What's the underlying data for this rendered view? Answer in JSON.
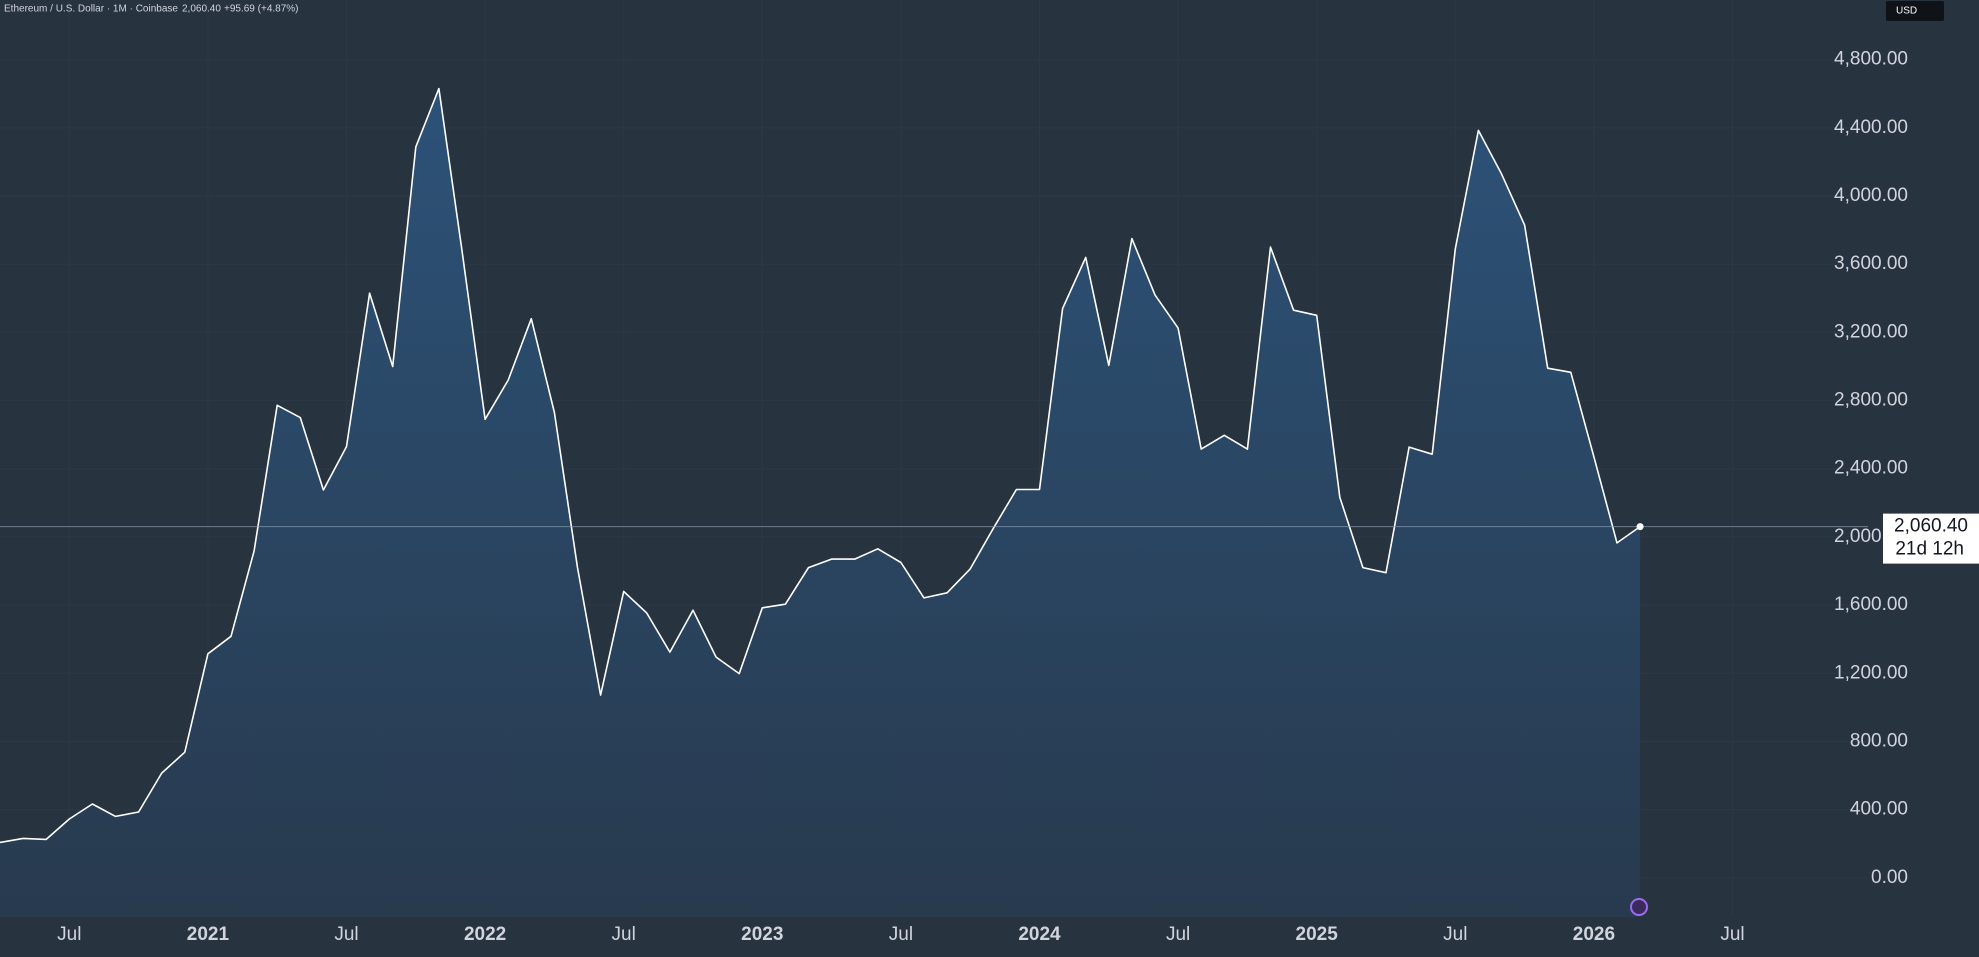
{
  "header": {
    "title": "Ethereum / U.S. Dollar · 1M · Coinbase",
    "price": "2,060.40",
    "change": "+95.69 (+4.87%)",
    "currency": "USD",
    "countdown": "21d 12h"
  },
  "chart_data": {
    "type": "area",
    "x": [
      "2020-04",
      "2020-05",
      "2020-06",
      "2020-07",
      "2020-08",
      "2020-09",
      "2020-10",
      "2020-11",
      "2020-12",
      "2021-01",
      "2021-02",
      "2021-03",
      "2021-04",
      "2021-05",
      "2021-06",
      "2021-07",
      "2021-08",
      "2021-09",
      "2021-10",
      "2021-11",
      "2021-12",
      "2022-01",
      "2022-02",
      "2022-03",
      "2022-04",
      "2022-05",
      "2022-06",
      "2022-07",
      "2022-08",
      "2022-09",
      "2022-10",
      "2022-11",
      "2022-12",
      "2023-01",
      "2023-02",
      "2023-03",
      "2023-04",
      "2023-05",
      "2023-06",
      "2023-07",
      "2023-08",
      "2023-09",
      "2023-10",
      "2023-11",
      "2023-12",
      "2024-01",
      "2024-02",
      "2024-03",
      "2024-04",
      "2024-05",
      "2024-06",
      "2024-07",
      "2024-08",
      "2024-09",
      "2024-10",
      "2024-11",
      "2024-12",
      "2025-01",
      "2025-02",
      "2025-03",
      "2025-04",
      "2025-05",
      "2025-06",
      "2025-07",
      "2025-08",
      "2025-09",
      "2025-10",
      "2025-11",
      "2025-12",
      "2026-01",
      "2026-02",
      "2026-03"
    ],
    "series": [
      {
        "color": "#ffffff",
        "values": [
          207,
          231,
          225,
          345,
          433,
          360,
          386,
          614,
          737,
          1314,
          1417,
          1918,
          2772,
          2700,
          2275,
          2530,
          3430,
          3000,
          4288,
          4630,
          3680,
          2690,
          2920,
          3280,
          2730,
          1820,
          1072,
          1680,
          1553,
          1324,
          1570,
          1295,
          1198,
          1584,
          1605,
          1820,
          1870,
          1870,
          1930,
          1850,
          1642,
          1672,
          1812,
          2050,
          2278,
          2278,
          3340,
          3640,
          3006,
          3750,
          3420,
          3225,
          2515,
          2596,
          2515,
          3700,
          3330,
          3300,
          2233,
          1820,
          1790,
          2527,
          2485,
          3690,
          4385,
          4130,
          3830,
          2990,
          2966,
          2470,
          1964.71,
          2060.4
        ]
      }
    ],
    "ylim": [
      -230,
      5150
    ],
    "yticks": [
      {
        "value": 0,
        "label": "0.00"
      },
      {
        "value": 400,
        "label": "400.00"
      },
      {
        "value": 800,
        "label": "800.00"
      },
      {
        "value": 1200,
        "label": "1,200.00"
      },
      {
        "value": 1600,
        "label": "1,600.00"
      },
      {
        "value": 2000,
        "label": "2,000.00"
      },
      {
        "value": 2400,
        "label": "2,400.00"
      },
      {
        "value": 2800,
        "label": "2,800.00"
      },
      {
        "value": 3200,
        "label": "3,200.00"
      },
      {
        "value": 3600,
        "label": "3,600.00"
      },
      {
        "value": 4000,
        "label": "4,000.00"
      },
      {
        "value": 4400,
        "label": "4,400.00"
      },
      {
        "value": 4800,
        "label": "4,800.00"
      }
    ],
    "xticks": [
      {
        "value": "2020-07",
        "label": "Jul"
      },
      {
        "value": "2021-01",
        "label": "2021"
      },
      {
        "value": "2021-07",
        "label": "Jul"
      },
      {
        "value": "2022-01",
        "label": "2022"
      },
      {
        "value": "2022-07",
        "label": "Jul"
      },
      {
        "value": "2023-01",
        "label": "2023"
      },
      {
        "value": "2023-07",
        "label": "Jul"
      },
      {
        "value": "2024-01",
        "label": "2024"
      },
      {
        "value": "2024-07",
        "label": "Jul"
      },
      {
        "value": "2025-01",
        "label": "2025"
      },
      {
        "value": "2025-07",
        "label": "Jul"
      },
      {
        "value": "2026-01",
        "label": "2026"
      },
      {
        "value": "2026-07",
        "label": "Jul"
      }
    ]
  }
}
